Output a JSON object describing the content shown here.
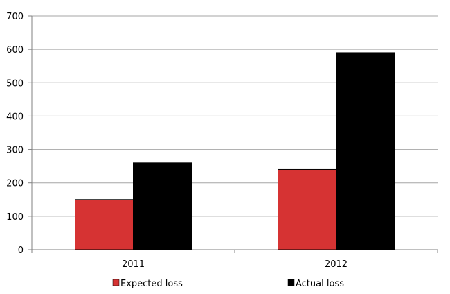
{
  "chart_data": {
    "type": "bar",
    "categories": [
      "2011",
      "2012"
    ],
    "series": [
      {
        "name": "Expected loss",
        "values": [
          150,
          240
        ],
        "color": "#d63333"
      },
      {
        "name": "Actual loss",
        "values": [
          260,
          590
        ],
        "color": "#000000"
      }
    ],
    "ylim": [
      0,
      700
    ],
    "yticks": [
      0,
      100,
      200,
      300,
      400,
      500,
      600,
      700
    ],
    "grid": true,
    "legend_position": "bottom"
  }
}
